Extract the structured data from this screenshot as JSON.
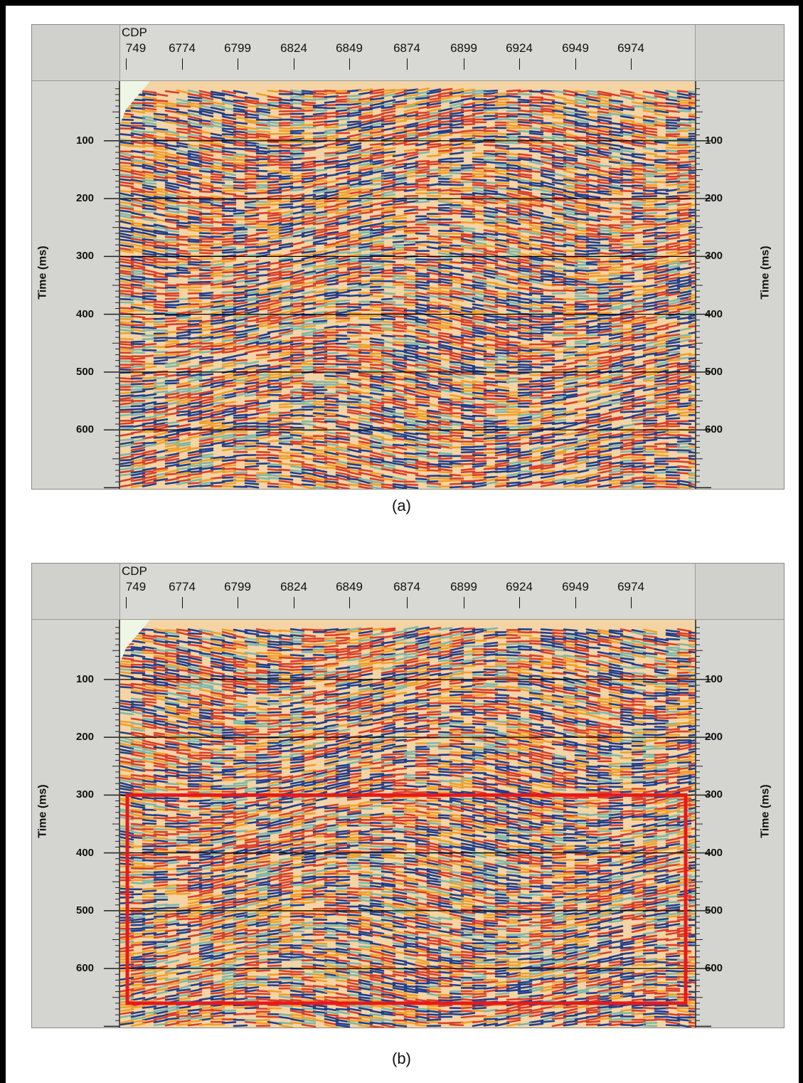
{
  "panels": [
    {
      "id": "a",
      "x_axis_label": "CDP",
      "x_ticks": [
        "749",
        "6774",
        "6799",
        "6824",
        "6849",
        "6874",
        "6899",
        "6924",
        "6949",
        "6974"
      ],
      "y_axis_label": "Time (ms)",
      "y_ticks": [
        "100",
        "200",
        "300",
        "400",
        "500",
        "600"
      ],
      "caption": "(a)",
      "highlight_box": null
    },
    {
      "id": "b",
      "x_axis_label": "CDP",
      "x_ticks": [
        "749",
        "6774",
        "6799",
        "6824",
        "6849",
        "6874",
        "6899",
        "6924",
        "6949",
        "6974"
      ],
      "y_axis_label": "Time (ms)",
      "y_ticks": [
        "100",
        "200",
        "300",
        "400",
        "500",
        "600"
      ],
      "caption": "(b)",
      "highlight_box": {
        "time_from": 300,
        "time_to": 660,
        "color": "#e8191b"
      }
    }
  ],
  "colors": {
    "trough": "#1f3f8f",
    "peak": "#d8402a",
    "mid_warm": "#f0a02a",
    "mid_cool": "#7fb8a8",
    "background": "#d4d4d0"
  }
}
